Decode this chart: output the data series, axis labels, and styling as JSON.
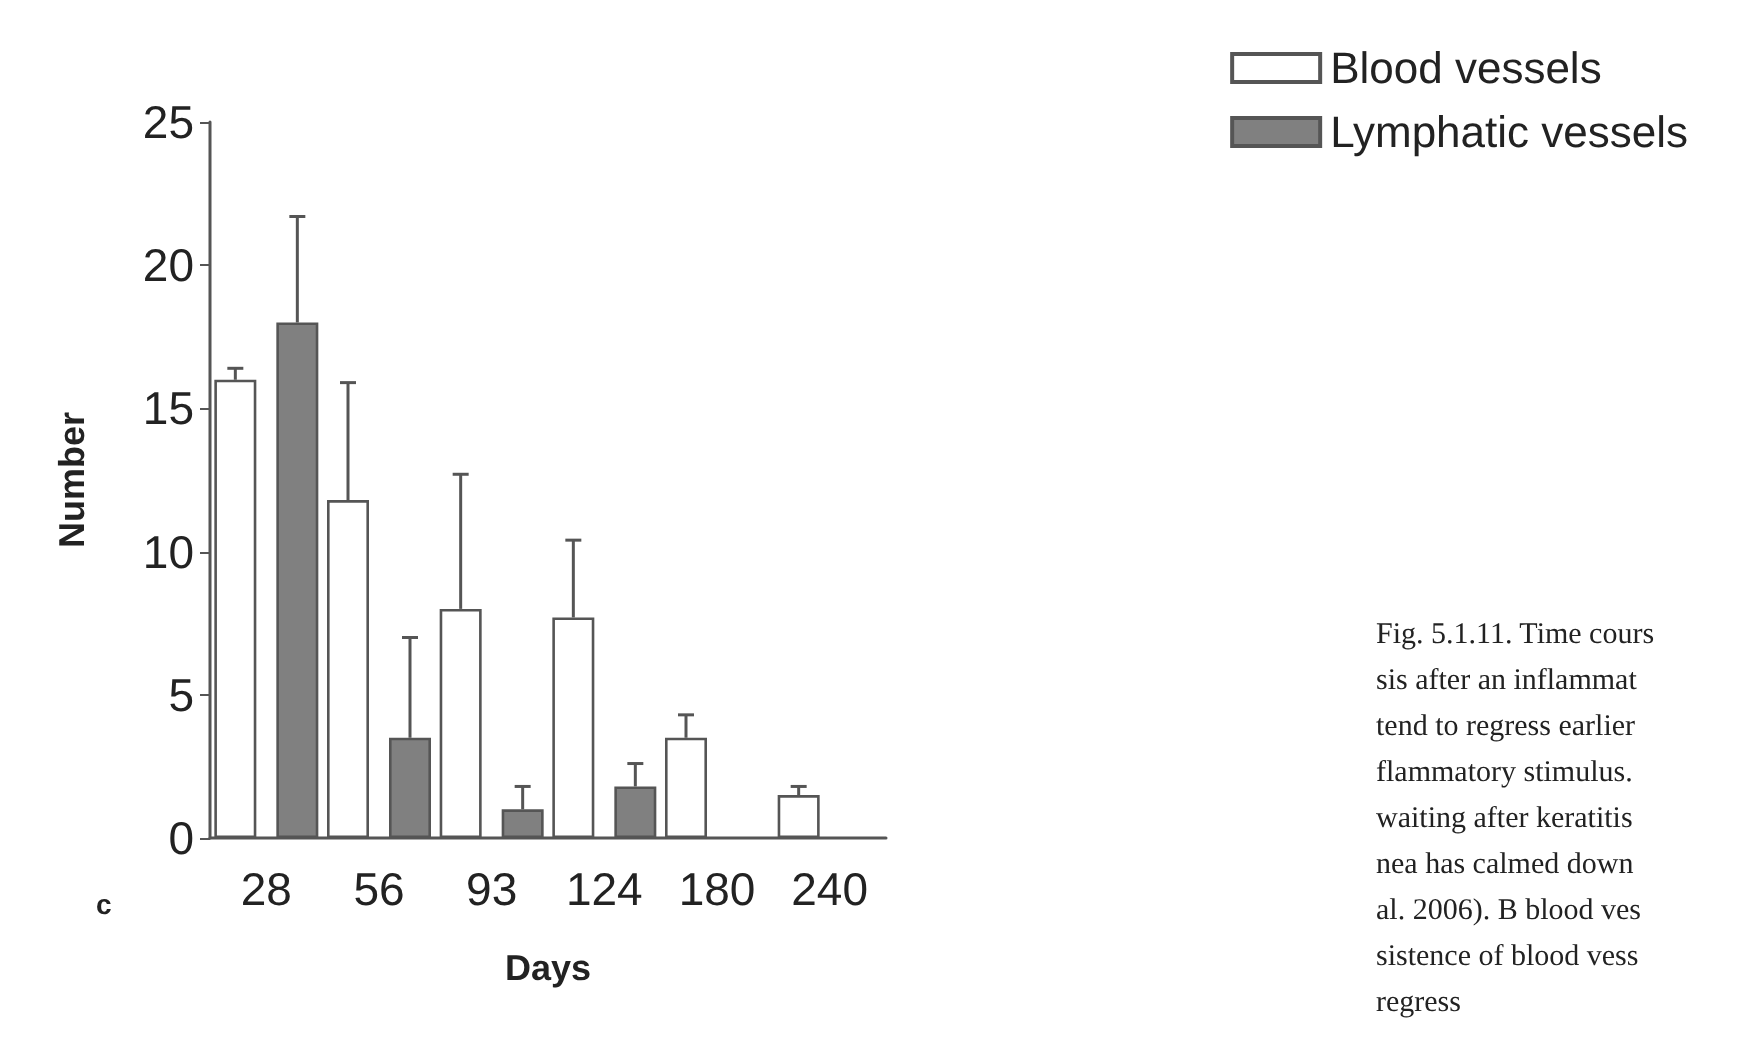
{
  "chart_data": {
    "type": "bar",
    "xlabel": "Days",
    "ylabel": "Number",
    "categories": [
      "28",
      "56",
      "93",
      "124",
      "180",
      "240"
    ],
    "series": [
      {
        "name": "Blood vessels",
        "color": "#ffffff",
        "values": [
          16,
          11.8,
          8.0,
          7.7,
          3.5,
          1.5
        ],
        "errors": [
          [
            16,
            16.4
          ],
          [
            11.8,
            15.9
          ],
          [
            8.0,
            12.7
          ],
          [
            7.7,
            10.4
          ],
          [
            3.5,
            4.3
          ],
          [
            1.5,
            1.8
          ]
        ]
      },
      {
        "name": "Lymphatic vessels",
        "color": "#808080",
        "values": [
          18,
          3.5,
          1,
          1.8,
          null,
          null
        ],
        "errors": [
          [
            18,
            21.7
          ],
          [
            3.5,
            7.0
          ],
          [
            1,
            1.8
          ],
          [
            1.8,
            2.6
          ],
          null,
          null
        ]
      }
    ],
    "ylim": [
      0,
      25
    ],
    "yticks": [
      0,
      5,
      10,
      15,
      20,
      25
    ],
    "grid": false,
    "legend": "top right",
    "annotations": [
      "c",
      "Fig. 5.1.11. Time cours",
      "sis after an inflammat",
      "tend to regress earlier",
      "flammatory stimulus.",
      "waiting after keratitis",
      "nea has calmed down",
      "al. 2006). B blood ves",
      "sistence of blood vess",
      "regress"
    ]
  }
}
